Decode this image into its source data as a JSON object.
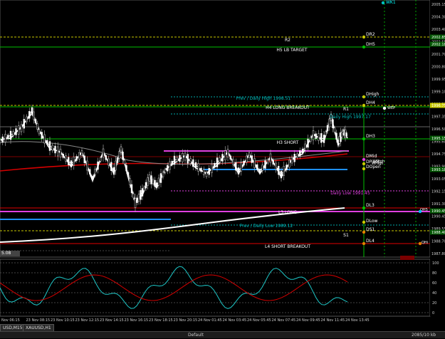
{
  "chart": {
    "top_label": "WK1",
    "left_readout": "5.08",
    "price_ticks": [
      "2005.15",
      "2004.30",
      "2003.40",
      "2002.55",
      "2001.70",
      "2000.80",
      "1999.95",
      "1999.10",
      "1998.20",
      "1997.35",
      "1996.50",
      "1995.60",
      "1994.75",
      "1993.90",
      "1993.05",
      "1992.15",
      "1991.30",
      "1990.45",
      "1989.55",
      "1988.70",
      "1987.80"
    ],
    "price_tags": [
      "2002.85",
      "2002.18",
      "1996.75",
      "1995.15",
      "1993.18",
      "1990.45",
      "1988.40"
    ],
    "levels": [
      {
        "name": "R2",
        "label": "R2",
        "tag": "DR2"
      },
      {
        "name": "H5",
        "label": "H5 LB TARGET",
        "tag": "DH5"
      },
      {
        "name": "PDH",
        "label": "Prev / Daily High 1998.51",
        "tag": "DHigh"
      },
      {
        "name": "H4",
        "label": "H4 LONG BREAKOUT",
        "tag": "DH4"
      },
      {
        "name": "R1",
        "label": "R1",
        "tag": ""
      },
      {
        "name": "DailyHigh",
        "label": "Daily High 1997.17",
        "tag": ""
      },
      {
        "name": "H3",
        "label": "H3 SHORT",
        "tag": "DH3"
      },
      {
        "name": "DMid",
        "label": "",
        "tag": "DMid"
      },
      {
        "name": "DPivot",
        "label": "",
        "tag": "DPivot"
      },
      {
        "name": "DOpen",
        "label": "",
        "tag": "DOpen"
      },
      {
        "name": "DailyLow",
        "label": "Daily Low 1991.45",
        "tag": ""
      },
      {
        "name": "L3",
        "label": "L3 LONG",
        "tag": "DL3"
      },
      {
        "name": "PDL",
        "label": "Prev / Daily Low 1989.12",
        "tag": "DLow"
      },
      {
        "name": "S1",
        "label": "S1",
        "tag": "DS1"
      },
      {
        "name": "L4",
        "label": "L4 SHORT BREAKOUT",
        "tag": "DL4"
      }
    ],
    "side_labels": [
      "WHigh",
      "WRigh",
      "WEP",
      "QH5",
      "QHi"
    ]
  },
  "indicator": {
    "ticks": [
      "100",
      "80",
      "60",
      "40",
      "20",
      "0"
    ]
  },
  "time_axis": [
    "Nov 06:15",
    "23 Nov 08:15",
    "23 Nov 10:15",
    "23 Nov 12:15",
    "23 Nov 14:15",
    "23 Nov 16:15",
    "23 Nov 18:15",
    "23 Nov 20:15",
    "24 Nov 01:45",
    "24 Nov 03:45",
    "24 Nov 05:45",
    "24 Nov 07:45",
    "24 Nov 09:45",
    "24 Nov 11:45",
    "24 Nov 13:45"
  ],
  "tabs": [
    "USD,M15",
    "XAUUSD,H1"
  ],
  "status": {
    "profile": "Default",
    "traffic": "2085/10 kb"
  },
  "colors": {
    "bg": "#000000",
    "up": "#ffffff",
    "ma_red": "#d40000",
    "ma_white": "#ffffff",
    "level_green": "#00c000",
    "level_blue": "#1e90ff",
    "level_magenta": "#e040e0",
    "level_red": "#e00000",
    "level_cyan": "#00bfbf"
  }
}
